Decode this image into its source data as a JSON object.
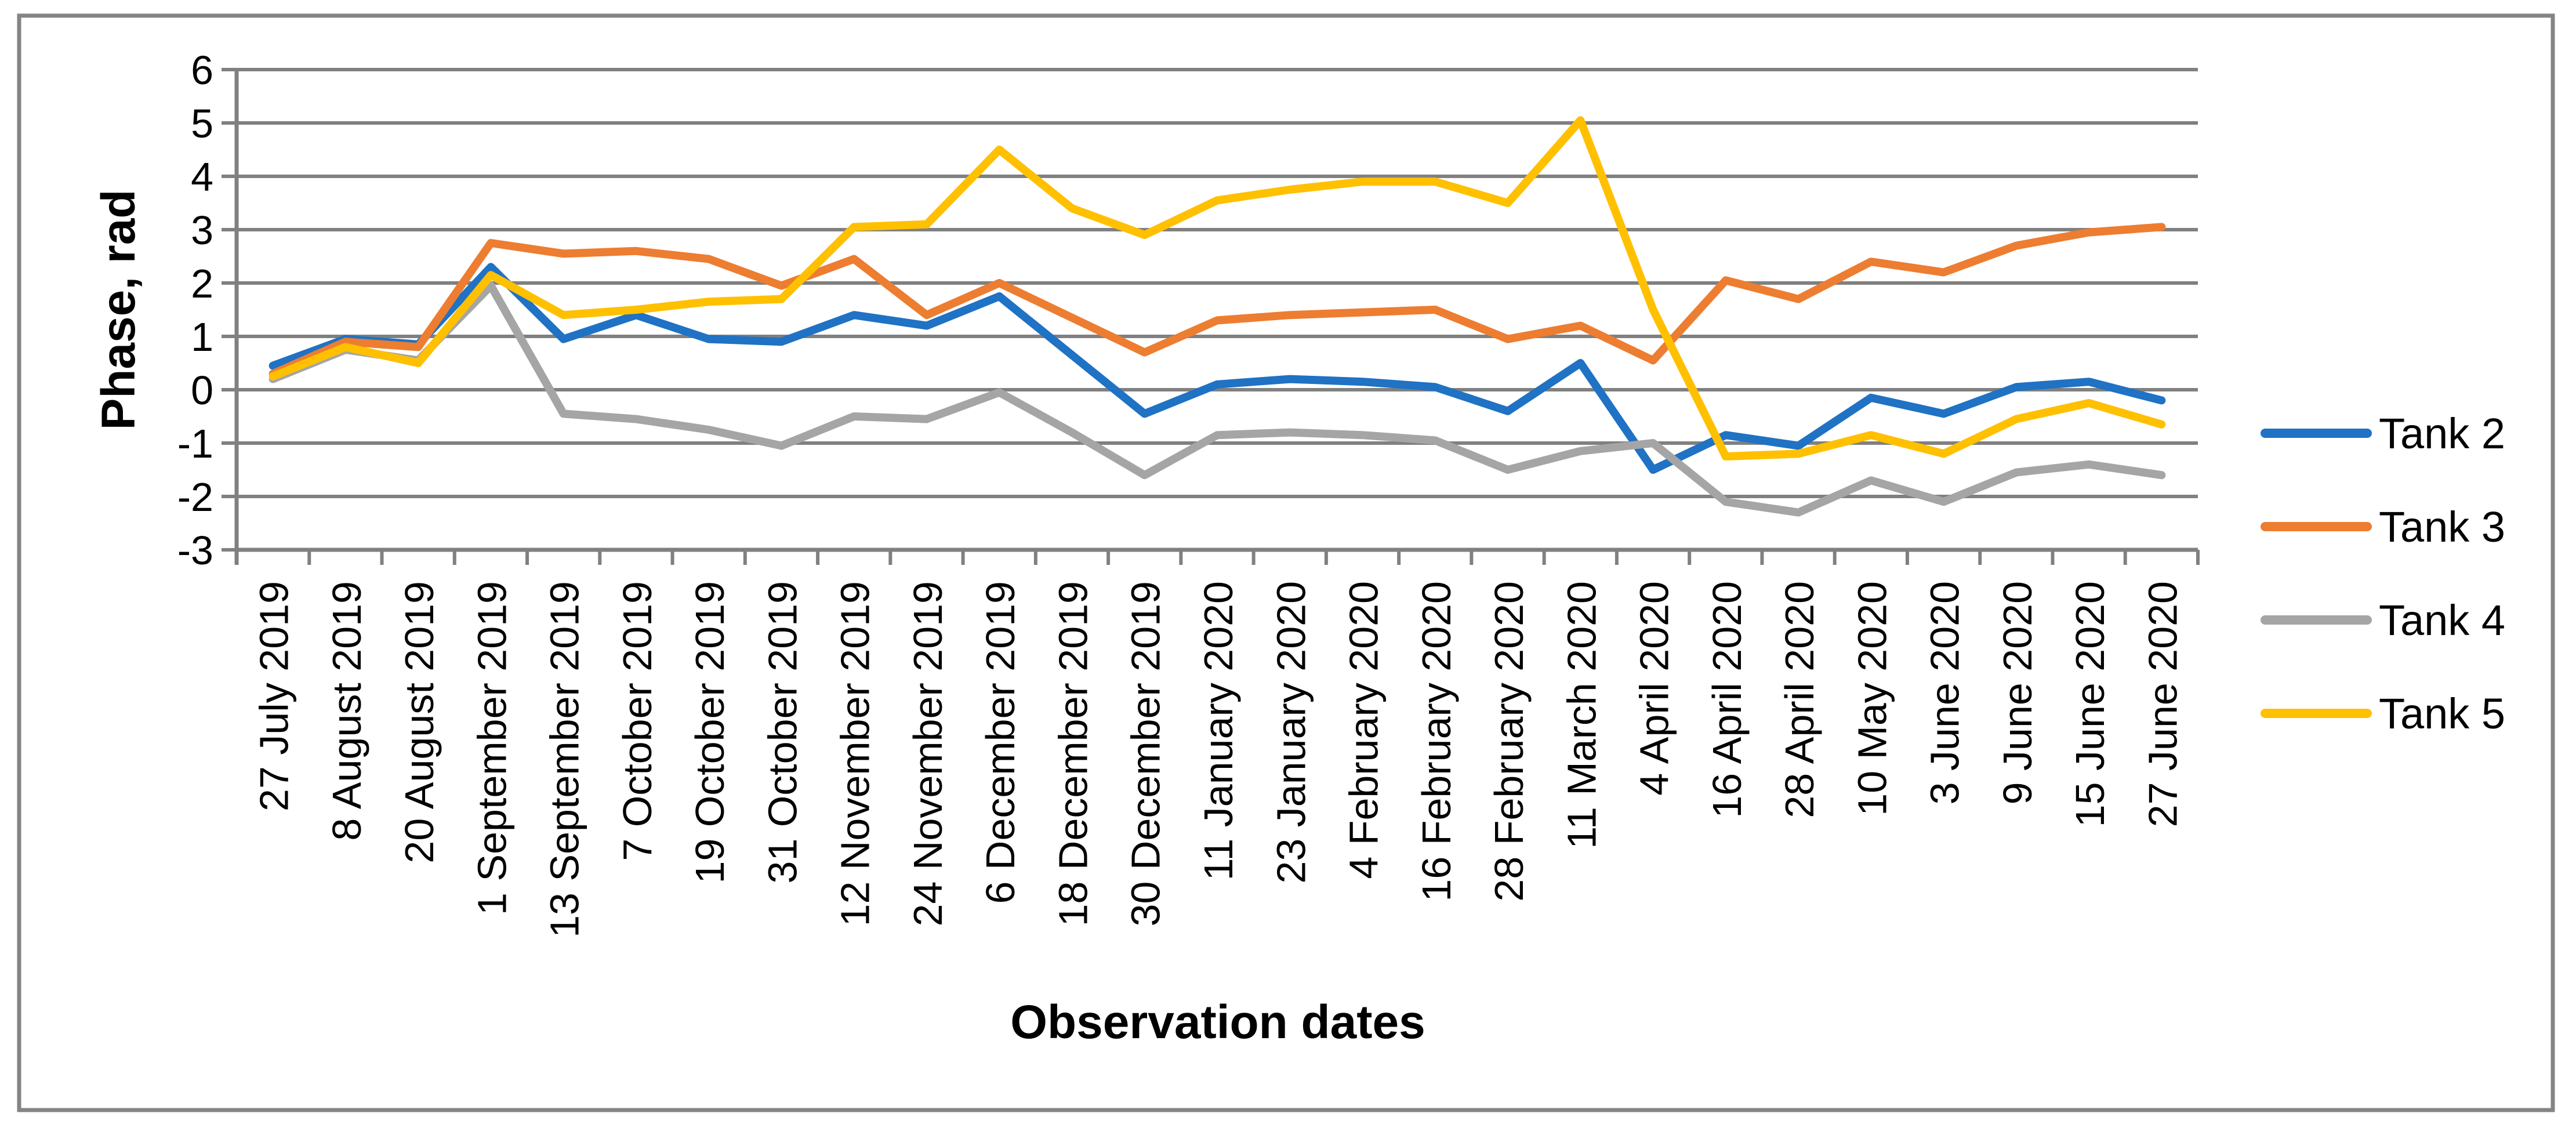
{
  "chart_data": {
    "type": "line",
    "title": "",
    "xlabel": "Observation dates",
    "ylabel": "Phase, rad",
    "ylim": [
      -3,
      6
    ],
    "y_tick_step": 1,
    "y_ticks": [
      "6",
      "5",
      "4",
      "3",
      "2",
      "1",
      "0",
      "-1",
      "-2",
      "-3"
    ],
    "grid": "horizontal",
    "legend_position": "right-center",
    "categories": [
      "27 July 2019",
      "8 August 2019",
      "20 August 2019",
      "1 September 2019",
      "13 September 2019",
      "7 October 2019",
      "19 October 2019",
      "31 October 2019",
      "12 November 2019",
      "24 November 2019",
      "6 December 2019",
      "18 December 2019",
      "30 December 2019",
      "11 January 2020",
      "23 January 2020",
      "4 February 2020",
      "16 February 2020",
      "28 February 2020",
      "11 March 2020",
      "4 April 2020",
      "16 April 2020",
      "28 April 2020",
      "10 May 2020",
      "3 June 2020",
      "9 June 2020",
      "15 June 2020",
      "27 June 2020"
    ],
    "series": [
      {
        "name": "Tank 2",
        "color": "#1F72C4",
        "values": [
          0.45,
          0.95,
          0.85,
          2.3,
          0.95,
          1.4,
          0.95,
          0.9,
          1.4,
          1.2,
          1.75,
          0.65,
          -0.45,
          0.1,
          0.2,
          0.15,
          0.05,
          -0.4,
          0.5,
          -1.5,
          -0.85,
          -1.05,
          -0.15,
          -0.45,
          0.05,
          0.15,
          -0.2
        ]
      },
      {
        "name": "Tank 3",
        "color": "#ED7D31",
        "values": [
          0.3,
          0.9,
          0.8,
          2.75,
          2.55,
          2.6,
          2.45,
          1.95,
          2.45,
          1.4,
          2.0,
          1.35,
          0.7,
          1.3,
          1.4,
          1.45,
          1.5,
          0.95,
          1.2,
          0.55,
          2.05,
          1.7,
          2.4,
          2.2,
          2.7,
          2.95,
          3.05
        ]
      },
      {
        "name": "Tank 4",
        "color": "#A5A5A5",
        "values": [
          0.2,
          0.75,
          0.55,
          1.95,
          -0.45,
          -0.55,
          -0.75,
          -1.05,
          -0.5,
          -0.55,
          -0.05,
          -0.8,
          -1.6,
          -0.85,
          -0.8,
          -0.85,
          -0.95,
          -1.5,
          -1.15,
          -1.0,
          -2.1,
          -2.3,
          -1.7,
          -2.1,
          -1.55,
          -1.4,
          -1.6
        ]
      },
      {
        "name": "Tank 5",
        "color": "#FFC000",
        "values": [
          0.25,
          0.8,
          0.5,
          2.15,
          1.4,
          1.5,
          1.65,
          1.7,
          3.05,
          3.1,
          4.5,
          3.4,
          2.9,
          3.55,
          3.75,
          3.9,
          3.9,
          3.5,
          5.05,
          1.5,
          -1.25,
          -1.2,
          -0.85,
          -1.2,
          -0.55,
          -0.25,
          -0.65
        ]
      }
    ],
    "colors": {
      "grid": "#808080",
      "border": "#848484",
      "text": "#000000",
      "background": "#FFFFFF"
    }
  }
}
